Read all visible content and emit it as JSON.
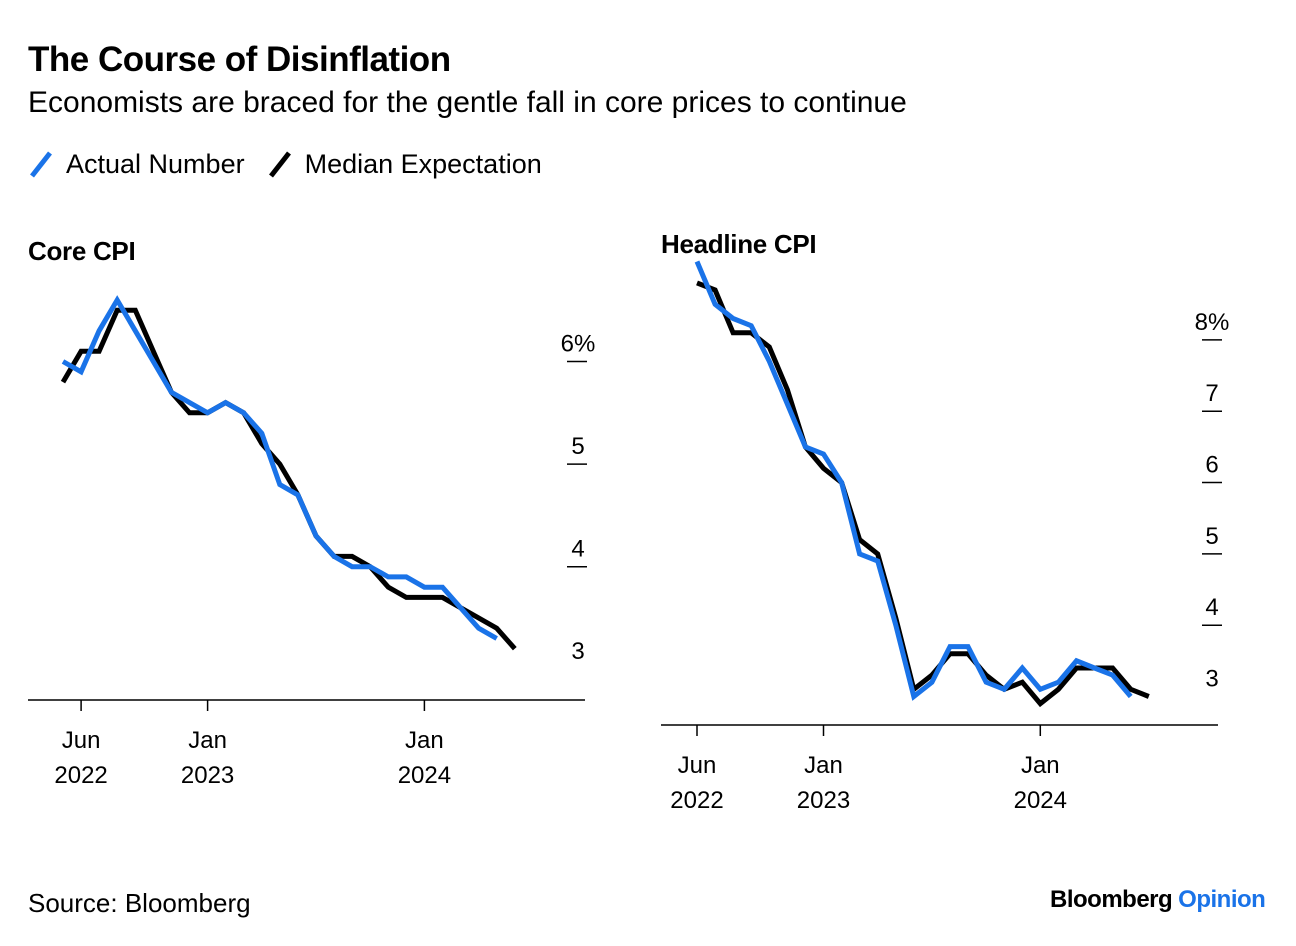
{
  "title": "The Course of Disinflation",
  "subtitle": "Economists are braced for the gentle fall in core prices to continue",
  "colors": {
    "actual": "#1a73e8",
    "expected": "#000000"
  },
  "legend": [
    {
      "label": "Actual Number",
      "color": "#1a73e8"
    },
    {
      "label": "Median Expectation",
      "color": "#000000"
    }
  ],
  "source": "Source: Bloomberg",
  "brand": {
    "name": "Bloomberg",
    "suffix": "Opinion"
  },
  "chart_data": [
    {
      "type": "line",
      "title": "Core CPI",
      "x": [
        "2022-05",
        "2022-06",
        "2022-07",
        "2022-08",
        "2022-09",
        "2022-10",
        "2022-11",
        "2022-12",
        "2023-01",
        "2023-02",
        "2023-03",
        "2023-04",
        "2023-05",
        "2023-06",
        "2023-07",
        "2023-08",
        "2023-09",
        "2023-10",
        "2023-11",
        "2023-12",
        "2024-01",
        "2024-02",
        "2024-03",
        "2024-04",
        "2024-05",
        "2024-06",
        "2024-07",
        "2024-08"
      ],
      "x_ticks": [
        {
          "at": "2022-06",
          "label": [
            "Jun",
            "2022"
          ]
        },
        {
          "at": "2023-01",
          "label": [
            "Jan",
            "2023"
          ]
        },
        {
          "at": "2024-01",
          "label": [
            "Jan",
            "2024"
          ]
        }
      ],
      "y_ticks": [
        {
          "value": 3,
          "label": "3"
        },
        {
          "value": 4,
          "label": "4"
        },
        {
          "value": 5,
          "label": "5"
        },
        {
          "value": 6,
          "label": "6%"
        }
      ],
      "ylim": [
        2.7,
        6.6
      ],
      "series": [
        {
          "name": "Actual Number",
          "color": "#1a73e8",
          "values": [
            6.0,
            5.9,
            6.3,
            6.6,
            6.3,
            6.0,
            5.7,
            5.6,
            5.5,
            5.6,
            5.5,
            5.3,
            4.8,
            4.7,
            4.3,
            4.1,
            4.0,
            4.0,
            3.9,
            3.9,
            3.8,
            3.8,
            3.6,
            3.4,
            3.3,
            null,
            null,
            null
          ]
        },
        {
          "name": "Median Expectation",
          "color": "#000000",
          "values": [
            5.8,
            6.1,
            6.1,
            6.5,
            6.5,
            6.1,
            5.7,
            5.5,
            5.5,
            5.6,
            5.5,
            5.2,
            5.0,
            4.7,
            4.3,
            4.1,
            4.1,
            4.0,
            3.8,
            3.7,
            3.7,
            3.7,
            3.6,
            3.5,
            3.4,
            3.2,
            null,
            null
          ]
        }
      ]
    },
    {
      "type": "line",
      "title": "Headline CPI",
      "x": [
        "2022-06",
        "2022-07",
        "2022-08",
        "2022-09",
        "2022-10",
        "2022-11",
        "2022-12",
        "2023-01",
        "2023-02",
        "2023-03",
        "2023-04",
        "2023-05",
        "2023-06",
        "2023-07",
        "2023-08",
        "2023-09",
        "2023-10",
        "2023-11",
        "2023-12",
        "2024-01",
        "2024-02",
        "2024-03",
        "2024-04",
        "2024-05",
        "2024-06",
        "2024-07",
        "2024-08",
        "2024-09"
      ],
      "x_ticks": [
        {
          "at": "2022-06",
          "label": [
            "Jun",
            "2022"
          ]
        },
        {
          "at": "2023-01",
          "label": [
            "Jan",
            "2023"
          ]
        },
        {
          "at": "2024-01",
          "label": [
            "Jan",
            "2024"
          ]
        }
      ],
      "y_ticks": [
        {
          "value": 3,
          "label": "3"
        },
        {
          "value": 4,
          "label": "4"
        },
        {
          "value": 5,
          "label": "5"
        },
        {
          "value": 6,
          "label": "6"
        },
        {
          "value": 7,
          "label": "7"
        },
        {
          "value": 8,
          "label": "8%"
        }
      ],
      "ylim": [
        2.6,
        8.7
      ],
      "series": [
        {
          "name": "Actual Number",
          "color": "#1a73e8",
          "values": [
            9.1,
            8.5,
            8.3,
            8.2,
            7.7,
            7.1,
            6.5,
            6.4,
            6.0,
            5.0,
            4.9,
            4.0,
            3.0,
            3.2,
            3.7,
            3.7,
            3.2,
            3.1,
            3.4,
            3.1,
            3.2,
            3.5,
            3.4,
            3.3,
            3.0,
            null,
            null,
            null
          ]
        },
        {
          "name": "Median Expectation",
          "color": "#000000",
          "values": [
            8.8,
            8.7,
            8.1,
            8.1,
            7.9,
            7.3,
            6.5,
            6.2,
            6.0,
            5.2,
            5.0,
            4.1,
            3.1,
            3.3,
            3.6,
            3.6,
            3.3,
            3.1,
            3.2,
            2.9,
            3.1,
            3.4,
            3.4,
            3.4,
            3.1,
            3.0,
            null,
            null
          ]
        }
      ]
    }
  ]
}
